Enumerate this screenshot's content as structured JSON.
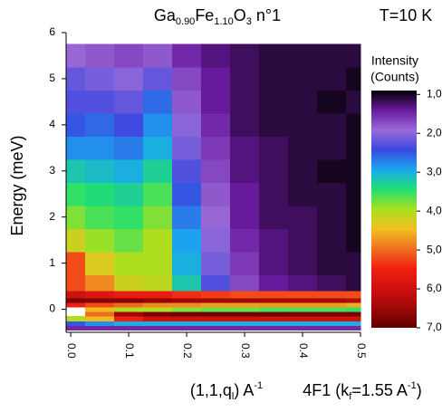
{
  "chart_data": {
    "type": "heatmap",
    "title": [
      {
        "text": "Ga"
      },
      {
        "text": "0.90",
        "sub": true
      },
      {
        "text": "Fe"
      },
      {
        "text": "1.10",
        "sub": true
      },
      {
        "text": "O"
      },
      {
        "text": "3",
        "sub": true
      },
      {
        "text": " n°1"
      }
    ],
    "annotation": "T=10 K",
    "x_label": [
      {
        "text": "(1,1,q"
      },
      {
        "text": "l",
        "sub": true
      },
      {
        "text": ") A"
      },
      {
        "text": "-1",
        "sup": true
      }
    ],
    "x_label_2": [
      {
        "text": "4F1 (k"
      },
      {
        "text": "f",
        "sub": true
      },
      {
        "text": "=1.55 A"
      },
      {
        "text": "-1",
        "sup": true
      },
      {
        "text": ")"
      }
    ],
    "y_label": "Energy (meV)",
    "colorbar_title": [
      "Intensity",
      "(Counts)"
    ],
    "xlim": [
      -0.008,
      0.5
    ],
    "ylim": [
      -0.5,
      6
    ],
    "xticks": [
      {
        "value": 0,
        "label": "0.0"
      },
      0.1,
      0.2,
      0.3,
      0.4,
      0.5
    ],
    "yticks": [
      0,
      1,
      2,
      3,
      4,
      5,
      6
    ],
    "zlim": [
      900,
      7000
    ],
    "zticks": [
      {
        "value": 1000,
        "label": "1,000"
      },
      {
        "value": 2000,
        "label": "2,000"
      },
      {
        "value": 3000,
        "label": "3,000"
      },
      {
        "value": 4000,
        "label": "4,000"
      },
      {
        "value": 5000,
        "label": "5,000"
      },
      {
        "value": 6000,
        "label": "6,000"
      },
      {
        "value": 7000,
        "label": "7,000"
      }
    ],
    "colormap": [
      "#000000",
      "#6a1aa0",
      "#9a6ad8",
      "#3a48e0",
      "#1aa8f0",
      "#20e070",
      "#a8e020",
      "#f0c020",
      "#f07020",
      "#f02010",
      "#d01010",
      "#a00808",
      "#600000"
    ],
    "x": [
      0,
      0.05,
      0.1,
      0.15,
      0.2,
      0.25,
      0.3,
      0.35,
      0.4,
      0.45,
      0.5
    ],
    "y": [
      -0.4,
      -0.3,
      -0.2,
      -0.1,
      0,
      0.1,
      0.2,
      0.3,
      0.5,
      1,
      1.5,
      2,
      2.5,
      3,
      3.5,
      4,
      4.5,
      5,
      5.5
    ],
    "z": [
      [
        1500,
        1500,
        1500,
        1500,
        1500,
        1500,
        1500,
        1500,
        1500,
        1500,
        1500
      ],
      [
        2500,
        2800,
        3000,
        3000,
        3000,
        3000,
        3000,
        3000,
        3000,
        3000,
        3000
      ],
      [
        4000,
        4500,
        5500,
        6000,
        6000,
        6000,
        6000,
        6000,
        6000,
        6000,
        6000
      ],
      [
        null,
        5000,
        6500,
        6800,
        6900,
        6900,
        6900,
        6900,
        6800,
        6800,
        6800
      ],
      [
        null,
        4500,
        4000,
        4000,
        3800,
        3700,
        3700,
        3600,
        3600,
        3600,
        3500
      ],
      [
        5500,
        5200,
        5000,
        4800,
        4800,
        4700,
        4700,
        4700,
        4700,
        4700,
        4600
      ],
      [
        6800,
        6700,
        6700,
        6600,
        6500,
        6500,
        6500,
        6400,
        6400,
        6400,
        6300
      ],
      [
        6000,
        5800,
        5600,
        5600,
        5400,
        5300,
        5200,
        5200,
        5200,
        5200,
        5200
      ],
      [
        5200,
        4800,
        4200,
        4100,
        3200,
        2300,
        1700,
        1400,
        1300,
        1200,
        1100
      ],
      [
        5200,
        4300,
        4000,
        4000,
        3000,
        2100,
        1600,
        1300,
        1200,
        1100,
        1100
      ],
      [
        4200,
        3900,
        3700,
        4000,
        2900,
        2000,
        1500,
        1300,
        1200,
        1100,
        1000
      ],
      [
        3800,
        3600,
        3500,
        3800,
        2700,
        1900,
        1400,
        1200,
        1200,
        1100,
        1000
      ],
      [
        3500,
        3400,
        3300,
        3600,
        2500,
        1800,
        1400,
        1200,
        1100,
        1100,
        1000
      ],
      [
        3200,
        3100,
        3000,
        3300,
        2300,
        1700,
        1300,
        1200,
        1100,
        1000,
        1000
      ],
      [
        2800,
        2800,
        2700,
        3000,
        2100,
        1600,
        1300,
        1200,
        1100,
        1100,
        1000
      ],
      [
        2500,
        2600,
        2400,
        2800,
        2000,
        1500,
        1200,
        1100,
        1100,
        1100,
        1000
      ],
      [
        2300,
        2300,
        2200,
        2600,
        1800,
        1400,
        1200,
        1100,
        1100,
        1000,
        1100
      ],
      [
        2200,
        2100,
        2000,
        2200,
        1700,
        1400,
        1200,
        1100,
        1100,
        1100,
        1000
      ],
      [
        1900,
        1800,
        1700,
        1800,
        1500,
        1300,
        1200,
        1100,
        1100,
        1100,
        1100
      ]
    ]
  }
}
